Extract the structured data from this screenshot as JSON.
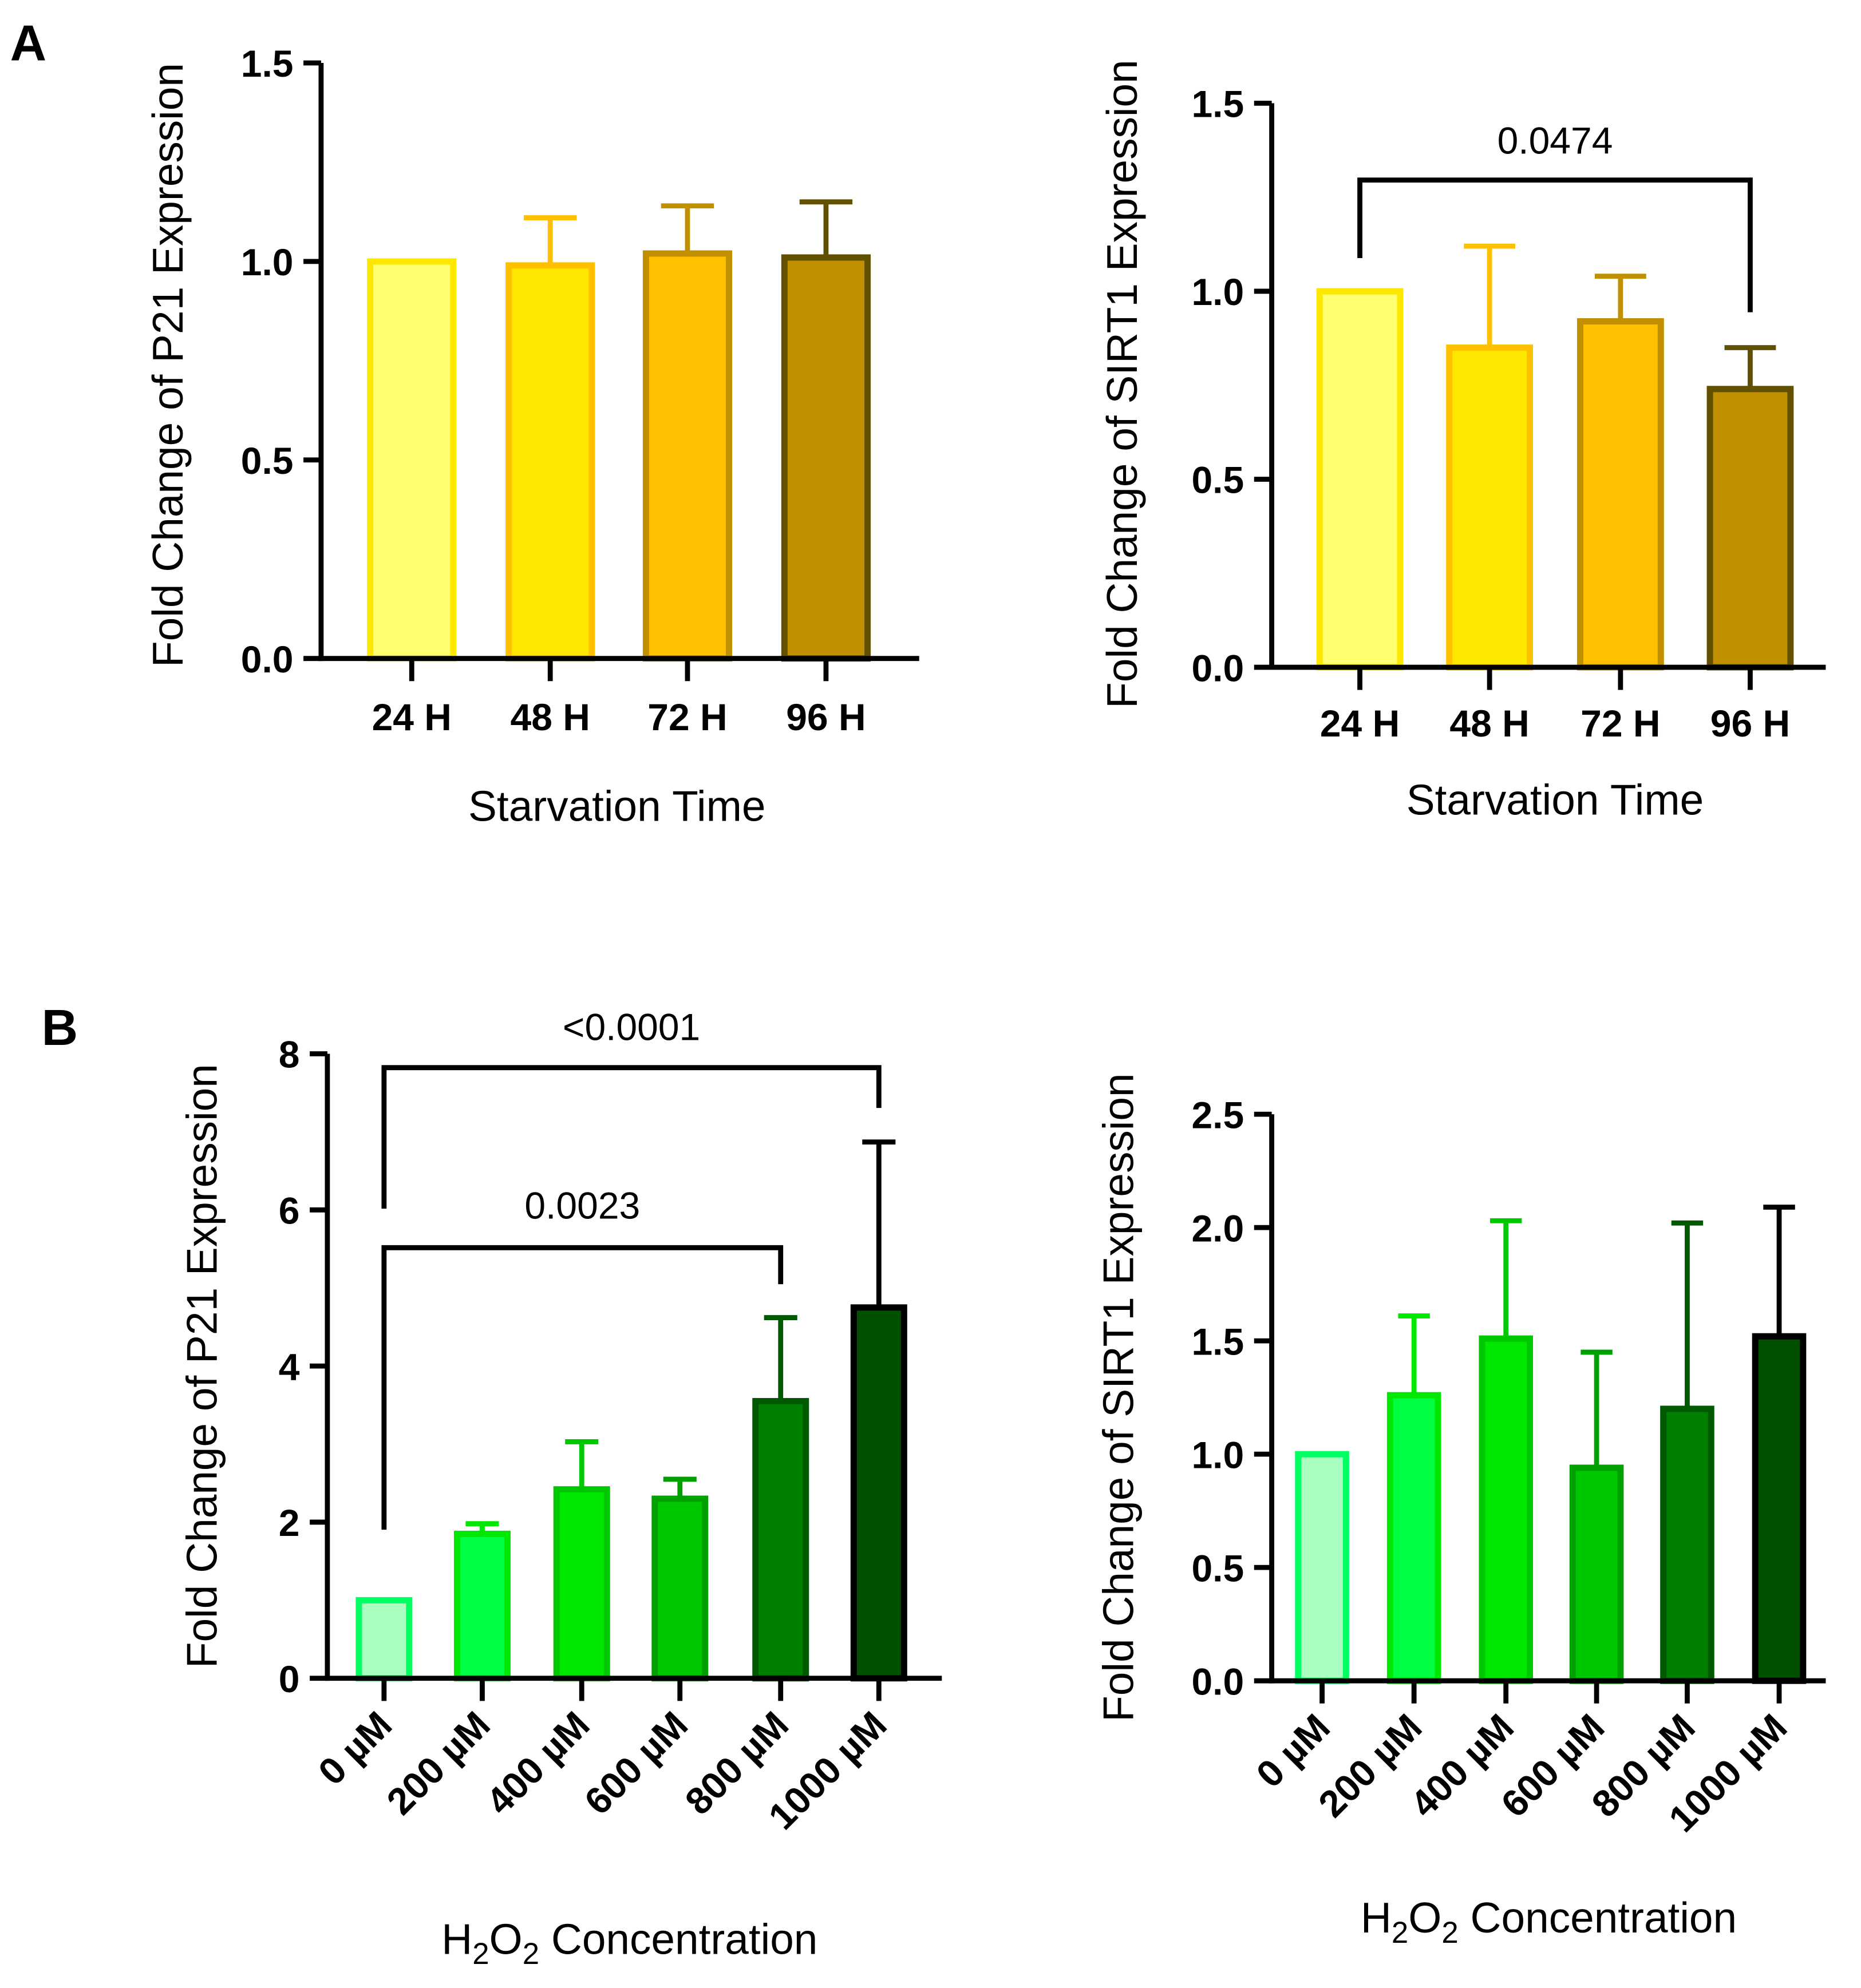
{
  "panel_labels": [
    "A",
    "B"
  ],
  "chart_data": [
    {
      "type": "bar",
      "panel": "A",
      "title": "",
      "xlabel": "Starvation Time",
      "ylabel": "Fold Change of P21 Expression",
      "categories": [
        "24 H",
        "48 H",
        "72 H",
        "96 H"
      ],
      "values": [
        1.0,
        0.99,
        1.02,
        1.01
      ],
      "error_upper": [
        null,
        1.11,
        1.14,
        1.15
      ],
      "ylim": [
        0,
        1.5
      ],
      "yticks": [
        "0.0",
        "0.5",
        "1.0",
        "1.5"
      ],
      "ytick_values": [
        0,
        0.5,
        1.0,
        1.5
      ],
      "fill_colors": [
        "#FFFF70",
        "#FFE800",
        "#FFC000",
        "#C09000"
      ],
      "edge_colors": [
        "#FFE800",
        "#FFC000",
        "#C09000",
        "#605000"
      ],
      "significance": []
    },
    {
      "type": "bar",
      "panel": "A",
      "title": "",
      "xlabel": "Starvation Time",
      "ylabel": "Fold Change of SIRT1 Expression",
      "categories": [
        "24 H",
        "48 H",
        "72 H",
        "96 H"
      ],
      "values": [
        1.0,
        0.85,
        0.92,
        0.74
      ],
      "error_upper": [
        null,
        1.12,
        1.04,
        0.85
      ],
      "ylim": [
        0,
        1.5
      ],
      "yticks": [
        "0.0",
        "0.5",
        "1.0",
        "1.5"
      ],
      "ytick_values": [
        0,
        0.5,
        1.0,
        1.5
      ],
      "fill_colors": [
        "#FFFF70",
        "#FFE800",
        "#FFC000",
        "#C09000"
      ],
      "edge_colors": [
        "#FFE800",
        "#FFC000",
        "#C09000",
        "#605000"
      ],
      "significance": [
        {
          "from": "24 H",
          "to": "96 H",
          "label": "0.0474"
        }
      ]
    },
    {
      "type": "bar",
      "panel": "B",
      "title": "",
      "xlabel": "H2O2 Concentration",
      "xlabel_parts": [
        "H",
        "2",
        "O",
        "2",
        " Concentration"
      ],
      "ylabel": "Fold Change of P21 Expression",
      "categories": [
        "0 µM",
        "200 µM",
        "400 µM",
        "600 µM",
        "800 µM",
        "1000 µM"
      ],
      "values": [
        1.0,
        1.85,
        2.42,
        2.3,
        3.55,
        4.75
      ],
      "error_upper": [
        null,
        1.98,
        3.03,
        2.55,
        4.62,
        6.87
      ],
      "ylim": [
        0,
        8
      ],
      "yticks": [
        "0",
        "2",
        "4",
        "6",
        "8"
      ],
      "ytick_values": [
        0,
        2,
        4,
        6,
        8
      ],
      "fill_colors": [
        "#A8FFC0",
        "#00FF40",
        "#00E800",
        "#00C800",
        "#008000",
        "#005000"
      ],
      "edge_colors": [
        "#00FF60",
        "#00E800",
        "#00C800",
        "#00A000",
        "#005800",
        "#000000"
      ],
      "significance": [
        {
          "from": "0 µM",
          "to": "1000 µM",
          "label": "<0.0001"
        },
        {
          "from": "0 µM",
          "to": "800 µM",
          "label": "0.0023"
        }
      ]
    },
    {
      "type": "bar",
      "panel": "B",
      "title": "",
      "xlabel": "H2O2 Concentration",
      "xlabel_parts": [
        "H",
        "2",
        "O",
        "2",
        " Concentration"
      ],
      "ylabel": "Fold Change of SIRT1 Expression",
      "categories": [
        "0 µM",
        "200 µM",
        "400 µM",
        "600 µM",
        "800 µM",
        "1000 µM"
      ],
      "values": [
        1.0,
        1.26,
        1.51,
        0.94,
        1.2,
        1.52
      ],
      "error_upper": [
        null,
        1.61,
        2.03,
        1.45,
        2.02,
        2.09
      ],
      "ylim": [
        0,
        2.5
      ],
      "yticks": [
        "0.0",
        "0.5",
        "1.0",
        "1.5",
        "2.0",
        "2.5"
      ],
      "ytick_values": [
        0,
        0.5,
        1.0,
        1.5,
        2.0,
        2.5
      ],
      "fill_colors": [
        "#A8FFC0",
        "#00FF40",
        "#00E800",
        "#00C800",
        "#008000",
        "#005000"
      ],
      "edge_colors": [
        "#00FF60",
        "#00E800",
        "#00C800",
        "#00A000",
        "#005800",
        "#000000"
      ],
      "significance": []
    }
  ]
}
